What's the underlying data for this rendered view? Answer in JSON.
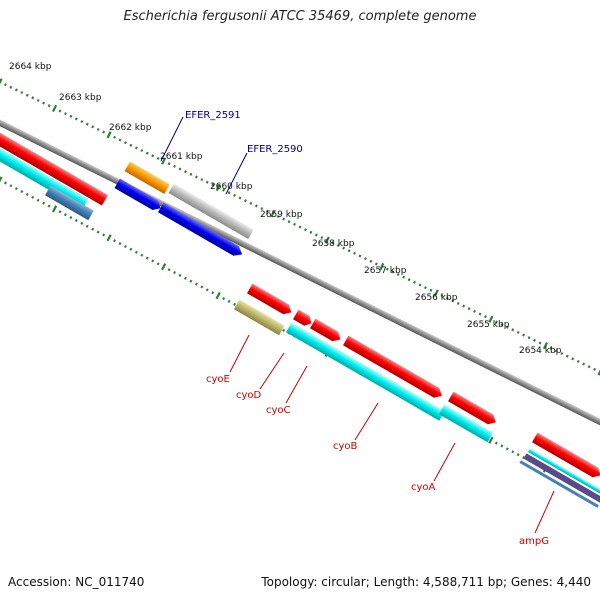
{
  "title": "Escherichia fergusonii ATCC 35469, complete genome",
  "ticks": [
    {
      "kbp": 2664,
      "label": "2664 kbp"
    },
    {
      "kbp": 2663,
      "label": "2663 kbp"
    },
    {
      "kbp": 2662,
      "label": "2662 kbp"
    },
    {
      "kbp": 2661,
      "label": "2661 kbp"
    },
    {
      "kbp": 2660,
      "label": "2660 kbp"
    },
    {
      "kbp": 2659,
      "label": "2659 kbp"
    },
    {
      "kbp": 2658,
      "label": "2658 kbp"
    },
    {
      "kbp": 2657,
      "label": "2657 kbp"
    },
    {
      "kbp": 2656,
      "label": "2656 kbp"
    },
    {
      "kbp": 2655,
      "label": "2655 kbp"
    },
    {
      "kbp": 2654,
      "label": "2654 kbp"
    }
  ],
  "gene_labels": [
    {
      "name": "EFER_2591",
      "color": "#00008b"
    },
    {
      "name": "EFER_2590",
      "color": "#00008b"
    },
    {
      "name": "cyoE",
      "color": "#cc0000"
    },
    {
      "name": "cyoD",
      "color": "#cc0000"
    },
    {
      "name": "cyoC",
      "color": "#cc0000"
    },
    {
      "name": "cyoB",
      "color": "#cc0000"
    },
    {
      "name": "cyoA",
      "color": "#cc0000"
    },
    {
      "name": "ampG",
      "color": "#cc0000"
    }
  ],
  "colors": {
    "backbone": "#8c8c8c",
    "tick": "#2e7d32",
    "cds": "#ff0000",
    "cds_dark": "#0000ee",
    "orf_orange": "#ff9900",
    "orf_gray": "#bbbbbb",
    "rna_cyan": "#00eeee",
    "steel": "#4682b4",
    "olive": "#bdb76b"
  },
  "footer": {
    "accession_label": "Accession:",
    "accession": "NC_011740",
    "topology_label": "Topology:",
    "topology": "circular",
    "length_label": "Length:",
    "length": "4,588,711 bp",
    "genes_label": "Genes:",
    "genes": "4,440"
  }
}
